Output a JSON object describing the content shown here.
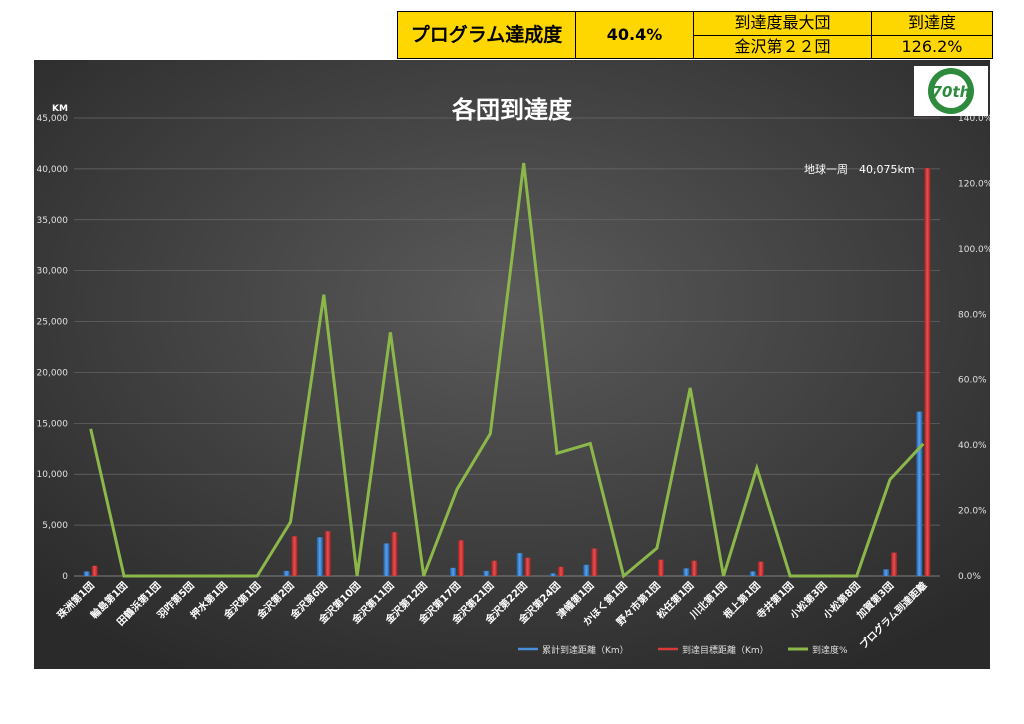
{
  "summary": {
    "program_label": "プログラム達成度",
    "program_value": "40.4%",
    "top_group_header": "到達度最大団",
    "top_group_value": "金沢第２２団",
    "rate_header": "到達度",
    "rate_value": "126.2%"
  },
  "logo": {
    "text": "70th"
  },
  "chart_data": {
    "type": "bar+line",
    "title": "各団到達度",
    "ylabel": "KM",
    "ylim": [
      0,
      45000
    ],
    "y2lim": [
      0,
      140
    ],
    "y_ticks": [
      "0",
      "5,000",
      "10,000",
      "15,000",
      "20,000",
      "25,000",
      "30,000",
      "35,000",
      "40,000",
      "45,000"
    ],
    "y2_ticks": [
      "0.0%",
      "20.0%",
      "40.0%",
      "60.0%",
      "80.0%",
      "100.0%",
      "120.0%",
      "140.0%"
    ],
    "grid": true,
    "legend_position": "bottom-right",
    "annotation": "地球一周　40,075km",
    "categories": [
      "珠洲第1団",
      "輪島第1団",
      "田鶴浜第1団",
      "羽咋第5団",
      "押水第1団",
      "金沢第1団",
      "金沢第2団",
      "金沢第6団",
      "金沢第10団",
      "金沢第11団",
      "金沢第12団",
      "金沢第17団",
      "金沢第21団",
      "金沢第22団",
      "金沢第24団",
      "津幡第1団",
      "かほく第1団",
      "野々市第1団",
      "松任第1団",
      "川北第1団",
      "根上第1団",
      "寺井第1団",
      "小松第3団",
      "小松第8団",
      "加賀第3団",
      "プログラム到達距離"
    ],
    "series": [
      {
        "name": "累計到達距離（Km）",
        "type": "bar",
        "color": "#4a90d9",
        "values": [
          450,
          0,
          0,
          0,
          0,
          0,
          500,
          3800,
          0,
          3200,
          0,
          800,
          500,
          2250,
          250,
          1100,
          0,
          0,
          750,
          0,
          450,
          0,
          0,
          0,
          650,
          16150
        ]
      },
      {
        "name": "到達目標距離（Km）",
        "type": "bar",
        "color": "#d93b3b",
        "values": [
          1000,
          0,
          0,
          0,
          0,
          0,
          3900,
          4400,
          0,
          4300,
          0,
          3500,
          1500,
          1800,
          900,
          2700,
          0,
          1600,
          1500,
          0,
          1400,
          0,
          0,
          0,
          2300,
          40075
        ]
      },
      {
        "name": "到達度%",
        "type": "line",
        "color": "#8cb84a",
        "values": [
          45,
          0,
          0,
          0,
          0,
          0,
          16.5,
          86,
          0,
          74.5,
          0,
          26.5,
          43.5,
          126.2,
          37.5,
          40.5,
          0,
          8.5,
          57.5,
          0,
          33,
          0,
          0,
          0,
          29.5,
          40.4
        ]
      }
    ]
  }
}
